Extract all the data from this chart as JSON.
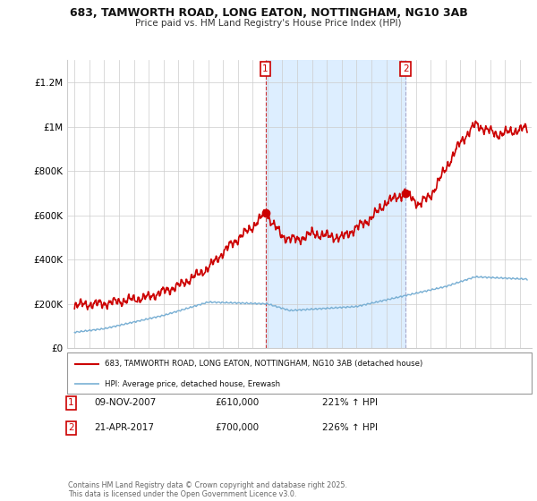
{
  "title_line1": "683, TAMWORTH ROAD, LONG EATON, NOTTINGHAM, NG10 3AB",
  "title_line2": "Price paid vs. HM Land Registry's House Price Index (HPI)",
  "background_color": "#ffffff",
  "plot_bg_color": "#ffffff",
  "grid_color": "#cccccc",
  "ylabel_ticks": [
    "£0",
    "£200K",
    "£400K",
    "£600K",
    "£800K",
    "£1M",
    "£1.2M"
  ],
  "ytick_values": [
    0,
    200000,
    400000,
    600000,
    800000,
    1000000,
    1200000
  ],
  "ylim": [
    0,
    1300000
  ],
  "xlim_start": 1994.5,
  "xlim_end": 2025.8,
  "red_line_color": "#cc0000",
  "blue_line_color": "#7ab0d4",
  "shade_color": "#ddeeff",
  "marker1_x": 2007.86,
  "marker1_y": 610000,
  "marker1_label": "1",
  "marker2_x": 2017.31,
  "marker2_y": 700000,
  "marker2_label": "2",
  "legend_red_label": "683, TAMWORTH ROAD, LONG EATON, NOTTINGHAM, NG10 3AB (detached house)",
  "legend_blue_label": "HPI: Average price, detached house, Erewash",
  "annotation1_date": "09-NOV-2007",
  "annotation1_price": "£610,000",
  "annotation1_hpi": "221% ↑ HPI",
  "annotation2_date": "21-APR-2017",
  "annotation2_price": "£700,000",
  "annotation2_hpi": "226% ↑ HPI",
  "footer_text": "Contains HM Land Registry data © Crown copyright and database right 2025.\nThis data is licensed under the Open Government Licence v3.0."
}
